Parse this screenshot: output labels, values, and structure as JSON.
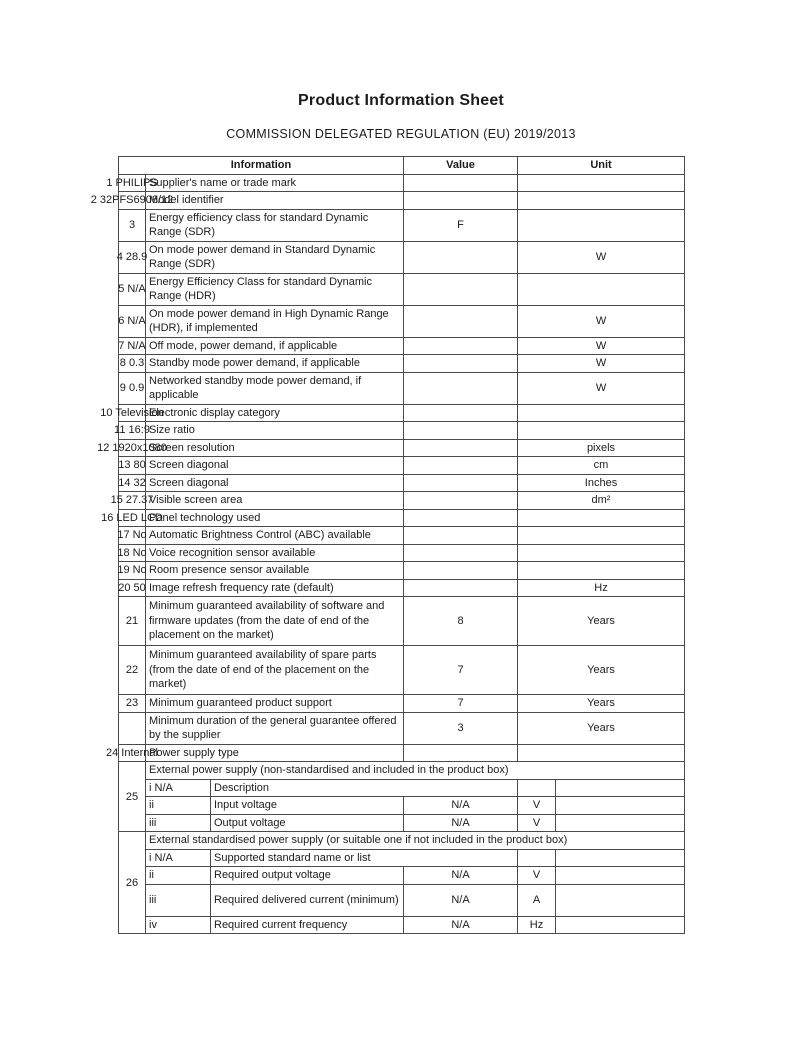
{
  "page": {
    "title": "Product Information Sheet",
    "subtitle": "COMMISSION DELEGATED REGULATION (EU) 2019/2013"
  },
  "table": {
    "headers": {
      "information": "Information",
      "value": "Value",
      "unit": "Unit"
    },
    "rows": [
      {
        "num": "1",
        "overlay": "PHILIPS",
        "label": "Supplier's name or trade mark",
        "value": "",
        "unit": ""
      },
      {
        "num": "2",
        "overlay": "32PFS6908/12",
        "label": "Model identifier",
        "value": "",
        "unit": ""
      },
      {
        "num": "3",
        "overlay": "",
        "label": "Energy efficiency class for standard Dynamic Range (SDR)",
        "value": "F",
        "unit": "",
        "lines": 2
      },
      {
        "num": "4",
        "overlay": "28.9",
        "label": "On mode power demand in Standard Dynamic Range (SDR)",
        "value": "",
        "unit": "W",
        "lines": 2
      },
      {
        "num": "5",
        "overlay": "N/A",
        "label": "Energy Efficiency Class for standard Dynamic Range (HDR)",
        "value": "",
        "unit": "",
        "lines": 2
      },
      {
        "num": "6",
        "overlay": "N/A",
        "label": "On mode power demand in High Dynamic Range (HDR), if implemented",
        "value": "",
        "unit": "W",
        "lines": 2
      },
      {
        "num": "7",
        "overlay": "N/A",
        "label": "Off mode, power demand, if applicable",
        "value": "",
        "unit": "W"
      },
      {
        "num": "8",
        "overlay": "0.3",
        "label": "Standby mode power demand, if applicable",
        "value": "",
        "unit": "W"
      },
      {
        "num": "9",
        "overlay": "0.9",
        "label": "Networked standby mode power demand, if applicable",
        "value": "",
        "unit": "W",
        "lines": 2
      },
      {
        "num": "10",
        "overlay": "Television",
        "label": "Electronic display category",
        "value": "",
        "unit": ""
      },
      {
        "num": "11",
        "overlay": "16:9",
        "label": "Size ratio",
        "value": "",
        "unit": ""
      },
      {
        "num": "12",
        "overlay": "1920x1080",
        "label": "Screen resolution",
        "value": "",
        "unit": "pixels"
      },
      {
        "num": "13",
        "overlay": "80",
        "label": "Screen diagonal",
        "value": "",
        "unit": "cm"
      },
      {
        "num": "14",
        "overlay": "32",
        "label": "Screen diagonal",
        "value": "",
        "unit": "Inches"
      },
      {
        "num": "15",
        "overlay": "27.37",
        "label": "Visible screen area",
        "value": "",
        "unit": "dm²"
      },
      {
        "num": "16",
        "overlay": "LED LCD",
        "label": "Panel technology used",
        "value": "",
        "unit": ""
      },
      {
        "num": "17",
        "overlay": "No",
        "label": "Automatic Brightness Control (ABC) available",
        "value": "",
        "unit": ""
      },
      {
        "num": "18",
        "overlay": "No",
        "label": "Voice recognition sensor available",
        "value": "",
        "unit": ""
      },
      {
        "num": "19",
        "overlay": "No",
        "label": "Room presence sensor available",
        "value": "",
        "unit": ""
      },
      {
        "num": "20",
        "overlay": "50",
        "label": "Image refresh frequency rate (default)",
        "value": "",
        "unit": "Hz"
      },
      {
        "num": "21",
        "overlay": "",
        "label": "Minimum guaranteed availability of software and firmware updates (from the date of end of the placement on the market)",
        "value": "8",
        "unit": "Years",
        "lines": 3
      },
      {
        "num": "22",
        "overlay": "",
        "label": "Minimum guaranteed availability of spare parts (from the date of end of the placement on the market)",
        "value": "7",
        "unit": "Years",
        "lines": 3
      },
      {
        "num": "23",
        "overlay": "",
        "label": "Minimum guaranteed product support",
        "value": "7",
        "unit": "Years"
      },
      {
        "num": "",
        "overlay": "",
        "label": "Minimum duration of the general guarantee offered by the supplier",
        "value": "3",
        "unit": "Years",
        "lines": 2
      },
      {
        "num": "24",
        "overlay": "Internal",
        "label": "Power supply type",
        "value": "",
        "unit": ""
      },
      {
        "type": "group",
        "num": "25",
        "header": "External power supply (non-standardised and included in the product box)",
        "subrows": [
          {
            "rn": "i N/A",
            "label": "Description",
            "value": "",
            "unit": "",
            "wide": true
          },
          {
            "rn": "ii",
            "label": "Input voltage",
            "value": "N/A",
            "unit": "V"
          },
          {
            "rn": "iii",
            "label": "Output voltage",
            "value": "N/A",
            "unit": "V"
          }
        ]
      },
      {
        "type": "group",
        "num": "26",
        "header": "External standardised power supply (or suitable one if not included in the product box)",
        "subrows": [
          {
            "rn": "i N/A",
            "label": "Supported standard name or list",
            "value": "",
            "unit": "",
            "wide": true
          },
          {
            "rn": "ii",
            "label": "Required output voltage",
            "value": "N/A",
            "unit": "V"
          },
          {
            "rn": "iii",
            "label": "Required delivered current (minimum)",
            "value": "N/A",
            "unit": "A",
            "lines": 2
          },
          {
            "rn": "iv",
            "label": "Required current frequency",
            "value": "N/A",
            "unit": "Hz"
          }
        ]
      }
    ]
  }
}
